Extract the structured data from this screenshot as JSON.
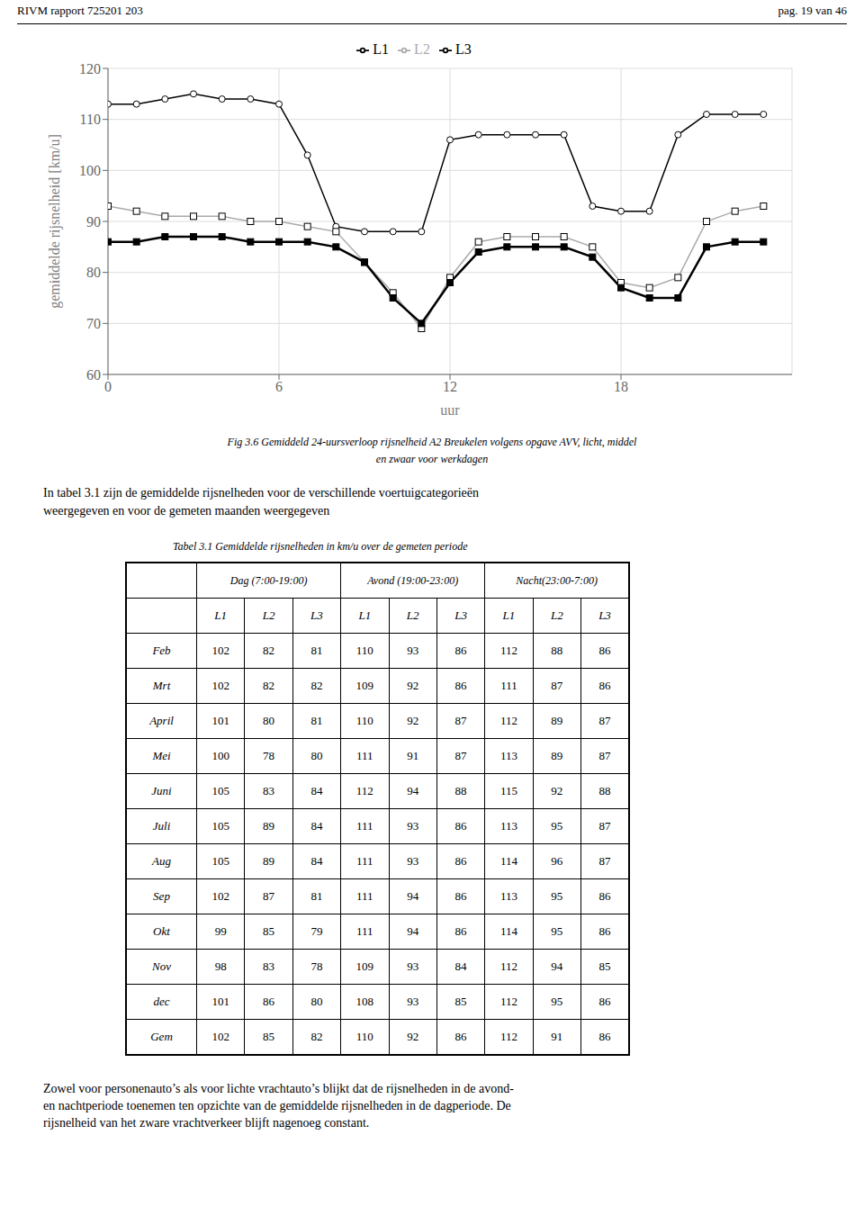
{
  "chart_data": [
    {
      "type": "line",
      "annotations": [
        "RIVM rapport  725201 203",
        "pag. 19 van 46",
        "Fig 3.6 Gemiddeld 24-uursverloop rijsnelheid A2 Breukelen volgens opgave AVV, licht, middel",
        "en zwaar voor werkdagen",
        "In tabel 3.1 zijn de gemiddelde rijsnelheden voor de verschillende voertuigcategorieën",
        "weergegeven en voor de gemeten maanden weergegeven",
        "Zowel voor personenauto’s als voor lichte vrachtauto’s blijkt dat de rijsnelheden in de avond-\nen nachtperiode toenemen ten opzichte van de gemiddelde rijsnelheden in de dagperiode. De\nrijsnelheid van het zware vrachtverkeer blijft nagenoeg constant."
      ],
      "x_label": "uur",
      "y_label": "gemiddelde rijsnelheid [km/u]",
      "x": [
        0,
        1,
        2,
        3,
        4,
        5,
        6,
        7,
        8,
        9,
        10,
        11,
        12,
        13,
        14,
        15,
        16,
        17,
        18,
        19,
        20,
        21,
        22,
        23
      ],
      "series": [
        {
          "name": "L1",
          "color": "#000000",
          "marker": "open_circle",
          "values": [
            113,
            113,
            114,
            115,
            114,
            114,
            113,
            103,
            89,
            88,
            88,
            88,
            106,
            107,
            107,
            107,
            107,
            93,
            92,
            92,
            107,
            111,
            111,
            111
          ]
        },
        {
          "name": "L2",
          "color": "#aaaaaa",
          "marker": "open_square",
          "values": [
            93,
            92,
            91,
            91,
            91,
            90,
            90,
            89,
            88,
            82,
            76,
            69,
            79,
            86,
            87,
            87,
            87,
            85,
            78,
            77,
            79,
            90,
            92,
            93
          ]
        },
        {
          "name": "L3",
          "color": "#000000",
          "marker": "filled_square",
          "values": [
            86,
            86,
            87,
            87,
            87,
            86,
            86,
            86,
            85,
            82,
            75,
            70,
            78,
            84,
            85,
            85,
            85,
            83,
            77,
            75,
            75,
            85,
            86,
            86
          ]
        }
      ],
      "xlim": [
        0,
        24
      ],
      "xticks": [
        0,
        6,
        12,
        18
      ],
      "ylim": [
        60,
        120
      ],
      "yticks": [
        60,
        70,
        80,
        90,
        100,
        110,
        120
      ],
      "grid": true,
      "legend": "top"
    },
    {
      "type": "table",
      "title": "Tabel 3.1 Gemiddelde rijsnelheden in km/u over de gemeten periode",
      "column_groups": [
        "Dag (7:00-19:00)",
        "Avond (19:00-23:00)",
        "Nacht(23:00-7:00)"
      ],
      "columns": [
        "L1",
        "L2",
        "L3",
        "L1",
        "L2",
        "L3",
        "L1",
        "L2",
        "L3"
      ],
      "categories": [
        "Feb",
        "Mrt",
        "April",
        "Mei",
        "Juni",
        "Juli",
        "Aug",
        "Sep",
        "Okt",
        "Nov",
        "dec",
        "Gem"
      ],
      "values": [
        [
          102,
          82,
          81,
          110,
          93,
          86,
          112,
          88,
          86
        ],
        [
          102,
          82,
          82,
          109,
          92,
          86,
          111,
          87,
          86
        ],
        [
          101,
          80,
          81,
          110,
          92,
          87,
          112,
          89,
          87
        ],
        [
          100,
          78,
          80,
          111,
          91,
          87,
          113,
          89,
          87
        ],
        [
          105,
          83,
          84,
          112,
          94,
          88,
          115,
          92,
          88
        ],
        [
          105,
          89,
          84,
          111,
          93,
          86,
          113,
          95,
          87
        ],
        [
          105,
          89,
          84,
          111,
          93,
          86,
          114,
          96,
          87
        ],
        [
          102,
          87,
          81,
          111,
          94,
          86,
          113,
          95,
          86
        ],
        [
          99,
          85,
          79,
          111,
          94,
          86,
          114,
          95,
          86
        ],
        [
          98,
          83,
          78,
          109,
          93,
          84,
          112,
          94,
          85
        ],
        [
          101,
          86,
          80,
          108,
          93,
          85,
          112,
          95,
          86
        ],
        [
          102,
          85,
          82,
          110,
          92,
          86,
          112,
          91,
          86
        ]
      ]
    }
  ]
}
